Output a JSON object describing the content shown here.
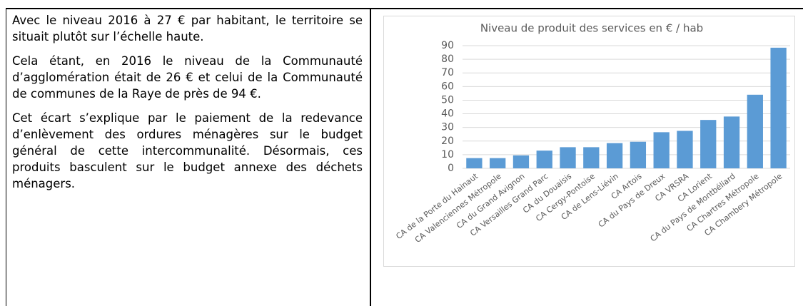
{
  "text": {
    "paragraphs": [
      "Avec le niveau 2016 à 27 € par habitant, le territoire se situait plutôt sur l’échelle haute.",
      "Cela étant, en 2016 le niveau de la Communauté d’agglomération était de 26 € et celui de la Communauté de communes de la Raye de près de 94 €.",
      "Cet écart s’explique par le paiement de la redevance d’enlèvement des ordures ménagères sur le budget général de cette intercommunalité. Désormais, ces produits basculent sur le budget annexe des déchets ménagers."
    ]
  },
  "chart_data": {
    "type": "bar",
    "title": "Niveau de produit des services en € / hab",
    "categories": [
      "CA de la Porte du Hainaut",
      "CA Valenciennes Métropole",
      "CA du Grand Avignon",
      "CA Versailles Grand Parc",
      "CA du Douaisis",
      "CA Cergy-Pontoise",
      "CA de Lens-Liévin",
      "CA Artois",
      "CA du Pays de Dreux",
      "CA VRSRA",
      "CA Lorient",
      "CA du Pays de Montbéliard",
      "CA Chartres Métropole",
      "CA Chambery Métropole"
    ],
    "values": [
      7.5,
      7.5,
      9.5,
      13,
      15.5,
      15.5,
      18.5,
      19.5,
      26.5,
      27.5,
      35.5,
      38,
      54,
      88.5
    ],
    "color": "#5b9bd5",
    "ylim": [
      0,
      90
    ],
    "yticks": [
      0,
      10,
      20,
      30,
      40,
      50,
      60,
      70,
      80,
      90
    ],
    "grid": true
  }
}
